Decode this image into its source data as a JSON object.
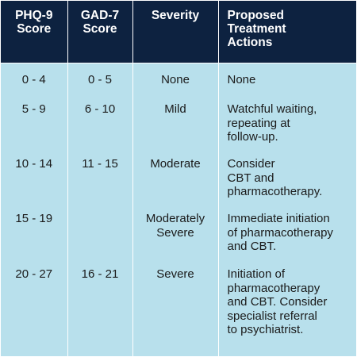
{
  "headers": {
    "phq9": "PHQ-9\nScore",
    "gad7": "GAD-7\nScore",
    "severity": "Severity",
    "actions": "Proposed\nTreatment\nActions"
  },
  "rows": [
    {
      "phq9": "0 - 4",
      "gad7": "0 - 5",
      "severity": "None",
      "actions": "None"
    },
    {
      "phq9": "5 - 9",
      "gad7": "6 - 10",
      "severity": "Mild",
      "actions": "Watchful waiting,\nrepeating at\nfollow-up."
    },
    {
      "phq9": "10 - 14",
      "gad7": "11 - 15",
      "severity": "Moderate",
      "actions": "Consider\nCBT and\npharmacotherapy."
    },
    {
      "phq9": "15 - 19",
      "gad7": "",
      "severity": "Moderately\nSevere",
      "actions": "Immediate initiation\nof pharmacotherapy\nand CBT."
    },
    {
      "phq9": "20 - 27",
      "gad7": "16 - 21",
      "severity": "Severe",
      "actions": "Initiation of\npharmacotherapy\nand CBT. Consider\nspecialist referral\nto psychiatrist."
    }
  ],
  "colors": {
    "header_bg": "#0d2240",
    "body_bg": "#b8e0ec",
    "divider": "#ffffff"
  }
}
